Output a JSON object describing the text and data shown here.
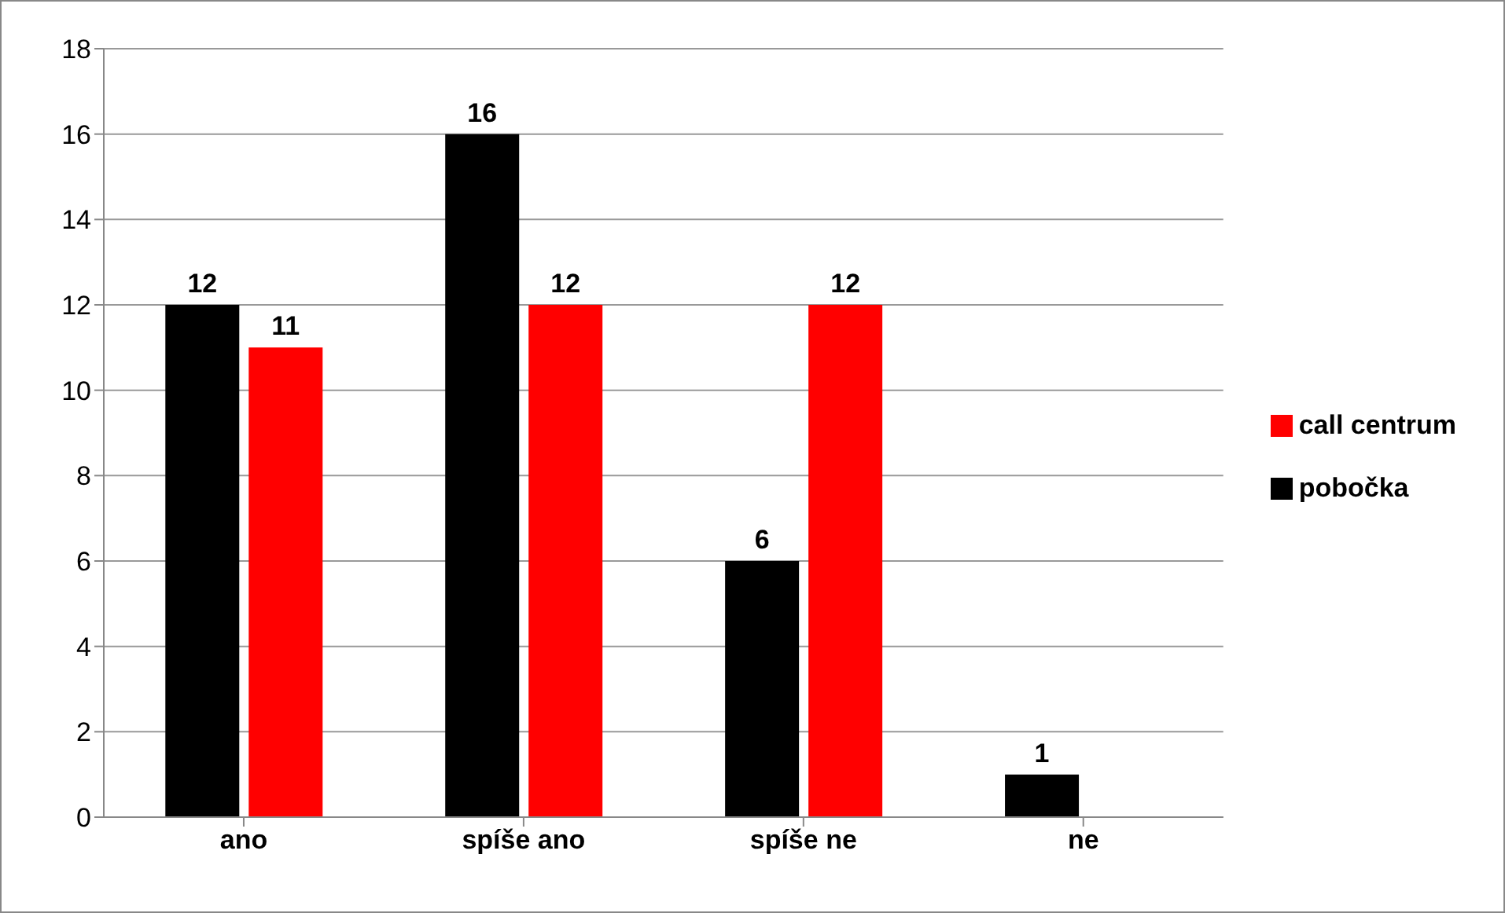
{
  "chart_data": {
    "type": "bar",
    "categories": [
      "ano",
      "spíše ano",
      "spíše ne",
      "ne"
    ],
    "series": [
      {
        "name": "pobočka",
        "color": "#000000",
        "values": [
          12,
          16,
          6,
          1
        ]
      },
      {
        "name": "call centrum",
        "color": "#ff0000",
        "values": [
          11,
          12,
          12,
          null
        ]
      }
    ],
    "ylim": [
      0,
      18
    ],
    "yticks": [
      0,
      2,
      4,
      6,
      8,
      10,
      12,
      14,
      16,
      18
    ],
    "grid": "y",
    "legend": "right",
    "data_labels": true
  }
}
